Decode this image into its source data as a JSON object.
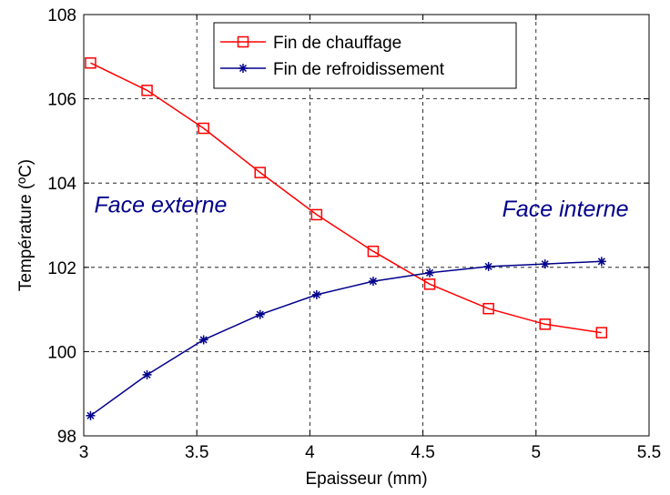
{
  "chart_data": {
    "type": "line",
    "xlabel": "Epaisseur (mm)",
    "ylabel": "Température (ºC)",
    "xlim": [
      3,
      5.5
    ],
    "ylim": [
      98,
      108
    ],
    "xticks": [
      3,
      3.5,
      4,
      4.5,
      5,
      5.5
    ],
    "xtick_labels": [
      "3",
      "3.5",
      "4",
      "4.5",
      "5",
      "5.5"
    ],
    "yticks": [
      98,
      100,
      102,
      104,
      106,
      108
    ],
    "ytick_labels": [
      "98",
      "100",
      "102",
      "104",
      "106",
      "108"
    ],
    "grid": true,
    "legend_position": "top-right",
    "series": [
      {
        "name": "Fin de chauffage",
        "color": "#ff0000",
        "marker": "square",
        "x": [
          3.03,
          3.28,
          3.53,
          3.78,
          4.03,
          4.28,
          4.53,
          4.79,
          5.04,
          5.29
        ],
        "y": [
          106.85,
          106.2,
          105.3,
          104.25,
          103.25,
          102.38,
          101.6,
          101.02,
          100.65,
          100.45
        ]
      },
      {
        "name": "Fin de refroidissement",
        "color": "#00008b",
        "marker": "star",
        "x": [
          3.03,
          3.28,
          3.53,
          3.78,
          4.03,
          4.28,
          4.53,
          4.79,
          5.04,
          5.29
        ],
        "y": [
          98.48,
          99.45,
          100.28,
          100.88,
          101.35,
          101.67,
          101.87,
          102.02,
          102.08,
          102.14
        ]
      }
    ],
    "annotations": [
      {
        "text": "Face externe",
        "x": 3.34,
        "y": 103.3
      },
      {
        "text": "Face interne",
        "x": 5.13,
        "y": 103.2
      }
    ]
  }
}
